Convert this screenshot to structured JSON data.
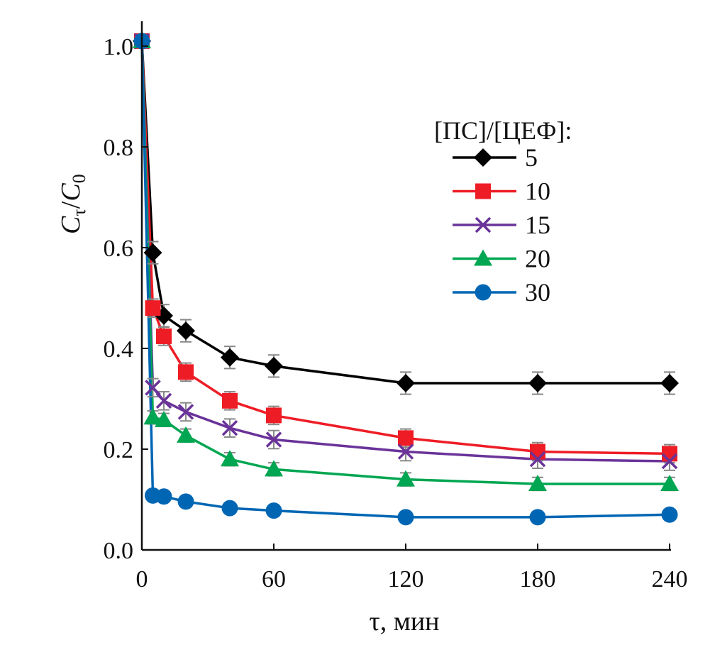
{
  "chart_data": {
    "type": "line",
    "xlabel": "τ, мин",
    "ylabel_main": "C",
    "ylabel_sub1": "τ",
    "ylabel_slash": "/",
    "ylabel_main2": "C",
    "ylabel_sub2": "0",
    "xlim": [
      0,
      240
    ],
    "ylim": [
      0,
      1.0
    ],
    "xticks": [
      "0",
      "60",
      "120",
      "180",
      "240"
    ],
    "yticks": [
      "0.0",
      "0.2",
      "0.4",
      "0.6",
      "0.8",
      "1.0"
    ],
    "grid": false,
    "legend_title": "[ПС]/[ЦЕФ]:",
    "legend_placement": "right",
    "x": [
      0,
      5,
      10,
      20,
      40,
      60,
      120,
      180,
      240
    ],
    "series": [
      {
        "name": "5",
        "color": "#000000",
        "marker": "diamond",
        "error": 0.022,
        "values": [
          1.01,
          0.59,
          0.465,
          0.435,
          0.382,
          0.365,
          0.331,
          0.331,
          0.331
        ]
      },
      {
        "name": "10",
        "color": "#ee1c25",
        "marker": "square",
        "error": 0.018,
        "values": [
          1.01,
          0.48,
          0.424,
          0.353,
          0.296,
          0.267,
          0.222,
          0.195,
          0.191
        ]
      },
      {
        "name": "15",
        "color": "#6a3399",
        "marker": "x",
        "error": 0.018,
        "values": [
          1.01,
          0.322,
          0.296,
          0.274,
          0.242,
          0.219,
          0.195,
          0.18,
          0.176
        ]
      },
      {
        "name": "20",
        "color": "#00a651",
        "marker": "triangle",
        "error": 0.013,
        "values": [
          1.01,
          0.263,
          0.258,
          0.227,
          0.18,
          0.16,
          0.14,
          0.131,
          0.131
        ]
      },
      {
        "name": "30",
        "color": "#0066b3",
        "marker": "circle",
        "error": 0,
        "values": [
          1.01,
          0.108,
          0.106,
          0.096,
          0.083,
          0.078,
          0.065,
          0.065,
          0.07
        ]
      }
    ]
  }
}
